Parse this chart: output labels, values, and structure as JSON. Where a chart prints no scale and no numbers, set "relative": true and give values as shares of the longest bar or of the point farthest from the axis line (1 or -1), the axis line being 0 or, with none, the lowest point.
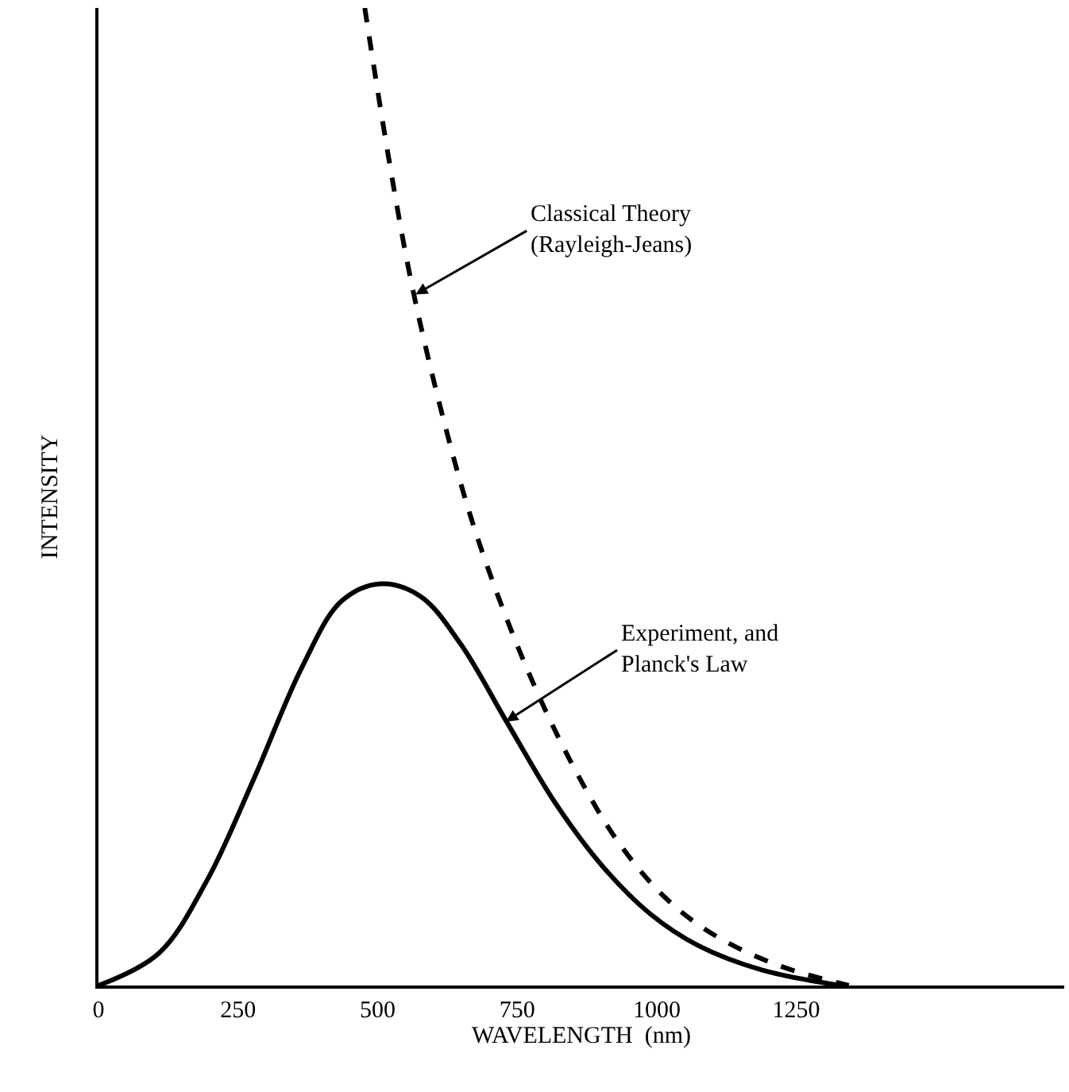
{
  "chart_data": {
    "type": "line",
    "relative": true,
    "xlabel": "WAVELENGTH  (nm)",
    "ylabel": "INTENSITY",
    "x": [
      0,
      108,
      193,
      278,
      364,
      435,
      506,
      577,
      648,
      733,
      818,
      903,
      989,
      1074,
      1188,
      1330
    ],
    "xlim": [
      0,
      1730
    ],
    "xticks": [
      0,
      250,
      500,
      750,
      1000,
      1250
    ],
    "marker": "none",
    "series": [
      {
        "color": "#000000",
        "line_style": "solid",
        "values": [
          0,
          0.033,
          0.106,
          0.211,
          0.325,
          0.393,
          0.411,
          0.398,
          0.35,
          0.268,
          0.187,
          0.122,
          0.073,
          0.041,
          0.016,
          0
        ]
      },
      {
        "color": "#000000",
        "line_style": "dashed",
        "x": [
          477,
          520,
          562,
          619,
          676,
          761,
          847,
          932,
          1017,
          1102,
          1216,
          1344
        ],
        "values": [
          1,
          0.846,
          0.715,
          0.577,
          0.463,
          0.333,
          0.228,
          0.146,
          0.089,
          0.052,
          0.021,
          0
        ]
      }
    ],
    "annotations": [
      {
        "text": "Classical Theory\n(Rayleigh-Jeans)",
        "x": 568,
        "y": 0.707
      },
      {
        "text": "Experiment, and\nPlanck's Law",
        "x": 730,
        "y": 0.27
      }
    ]
  }
}
